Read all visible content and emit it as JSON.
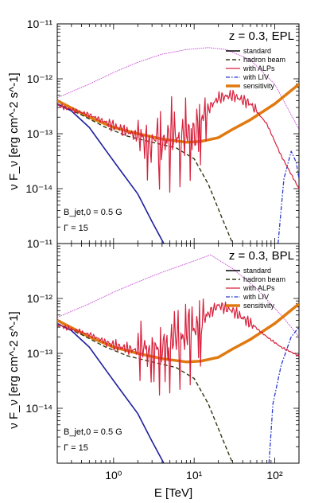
{
  "chart_data": [
    {
      "type": "line",
      "label": "z = 0.3, EPL",
      "xlabel": "E [TeV]",
      "ylabel": "ν F_ν [erg cm^-2 s^-1]",
      "xscale": "log",
      "yscale": "log",
      "xlim": [
        0.2,
        200
      ],
      "ylim": [
        1e-11,
        1e-15
      ],
      "ylim_note": "",
      "yrange": [
        1e-15,
        1e-11
      ],
      "y_tick_labels": [
        "10⁻¹¹",
        "10⁻¹²",
        "10⁻¹³",
        "10⁻¹⁴"
      ],
      "x_tick_labels": [
        "10⁰",
        "10¹",
        "10²"
      ],
      "param_text": "B_jet,0 = 0.5 G",
      "gamma_text": "Γ = 15",
      "legend": [
        "standard",
        "hadron beam",
        "with ALPs",
        "with LIV",
        "sensitivity"
      ],
      "series": [
        {
          "name": "standard",
          "color": "#1f1fa0",
          "x": [
            0.2,
            0.3,
            0.5,
            0.8,
            1.2,
            2,
            3,
            4.2
          ],
          "y": [
            3.5e-13,
            2.6e-13,
            1.3e-13,
            5e-14,
            2.2e-14,
            8e-15,
            2.5e-15,
            1e-15
          ]
        },
        {
          "name": "hadron beam",
          "color": "#2d3a12",
          "x": [
            0.2,
            0.4,
            0.8,
            1.5,
            3,
            6,
            10,
            15,
            22,
            30
          ],
          "y": [
            3.5e-13,
            2.2e-13,
            1.3e-13,
            9e-14,
            7e-14,
            5.5e-14,
            3.5e-14,
            1.2e-14,
            3e-15,
            1e-15
          ]
        },
        {
          "name": "with ALPs",
          "color": "#d8203c",
          "x": [
            0.2,
            0.5,
            1,
            2,
            3,
            5,
            8,
            12,
            20,
            30,
            50,
            80,
            120,
            200
          ],
          "y": [
            3.3e-13,
            2.2e-13,
            1.4e-13,
            9e-14,
            8e-14,
            7.5e-14,
            9e-14,
            2e-13,
            4.5e-13,
            5e-13,
            3.5e-13,
            1.5e-13,
            4e-14,
            1e-14
          ]
        },
        {
          "name": "with LIV",
          "color": "#2a3ad0",
          "x": [
            110,
            130,
            160,
            185,
            200
          ],
          "y": [
            1e-15,
            1.5e-14,
            4.8e-14,
            3e-14,
            1.5e-14
          ]
        },
        {
          "name": "sensitivity",
          "color": "#e07a10",
          "x": [
            0.2,
            0.5,
            1,
            2,
            4,
            8,
            12,
            20,
            30,
            50,
            100,
            200
          ],
          "y": [
            4e-13,
            2e-13,
            1.3e-13,
            1e-13,
            8e-14,
            7e-14,
            7.2e-14,
            8.5e-14,
            1.2e-13,
            1.8e-13,
            3.5e-13,
            8e-13
          ]
        },
        {
          "name": "",
          "color": "#c02bd0",
          "x": [
            0.2,
            0.5,
            1,
            2,
            4,
            8,
            15,
            25,
            50,
            100,
            200
          ],
          "y": [
            4.5e-13,
            8e-13,
            1.3e-12,
            2e-12,
            2.8e-12,
            3.4e-12,
            3.7e-12,
            3.4e-12,
            2.2e-12,
            8e-13,
            1.2e-13
          ]
        }
      ]
    },
    {
      "type": "line",
      "label": "z = 0.3, BPL",
      "xlabel": "E [TeV]",
      "ylabel": "ν F_ν [erg cm^-2 s^-1]",
      "xscale": "log",
      "yscale": "log",
      "xlim": [
        0.2,
        200
      ],
      "yrange": [
        1e-15,
        1e-11
      ],
      "y_tick_labels": [
        "10⁻¹¹",
        "10⁻¹²",
        "10⁻¹³",
        "10⁻¹⁴"
      ],
      "x_tick_labels": [
        "10⁰",
        "10¹",
        "10²"
      ],
      "param_text": "B_jet,0 = 0.5 G",
      "gamma_text": "Γ = 15",
      "legend": [
        "standard",
        "hadron beam",
        "with ALPs",
        "with LIV",
        "sensitivity"
      ],
      "series": [
        {
          "name": "standard",
          "color": "#1f1fa0",
          "x": [
            0.2,
            0.3,
            0.5,
            0.8,
            1.2,
            2,
            3,
            4.2
          ],
          "y": [
            3.5e-13,
            2.6e-13,
            1.3e-13,
            5e-14,
            2.2e-14,
            8e-15,
            2.5e-15,
            1e-15
          ]
        },
        {
          "name": "hadron beam",
          "color": "#2d3a12",
          "x": [
            0.2,
            0.4,
            0.8,
            1.5,
            3,
            6,
            10,
            15,
            22,
            30
          ],
          "y": [
            3.5e-13,
            2.2e-13,
            1.3e-13,
            9e-14,
            7e-14,
            5.5e-14,
            3.5e-14,
            1.2e-14,
            3e-15,
            1e-15
          ]
        },
        {
          "name": "with ALPs",
          "color": "#d8203c",
          "x": [
            0.2,
            0.5,
            1,
            2,
            3,
            5,
            8,
            12,
            20,
            30,
            50,
            80,
            120,
            200
          ],
          "y": [
            3.3e-13,
            2.2e-13,
            1.4e-13,
            1.1e-13,
            1.3e-13,
            1.5e-13,
            2e-13,
            4e-13,
            7.5e-13,
            6e-13,
            3.5e-13,
            2e-13,
            1.3e-13,
            9e-14
          ]
        },
        {
          "name": "with LIV",
          "color": "#2a3ad0",
          "x": [
            85,
            95,
            120,
            160,
            200
          ],
          "y": [
            1e-15,
            1.2e-14,
            6e-14,
            2e-13,
            3e-13
          ]
        },
        {
          "name": "sensitivity",
          "color": "#e07a10",
          "x": [
            0.2,
            0.5,
            1,
            2,
            4,
            8,
            12,
            20,
            30,
            50,
            100,
            200
          ],
          "y": [
            4e-13,
            2e-13,
            1.3e-13,
            1e-13,
            8e-14,
            7e-14,
            7.2e-14,
            8.5e-14,
            1.2e-13,
            1.8e-13,
            3.5e-13,
            8e-13
          ]
        },
        {
          "name": "",
          "color": "#c02bd0",
          "x": [
            0.2,
            0.5,
            1,
            2,
            4,
            8,
            16,
            30,
            60,
            120,
            200
          ],
          "y": [
            4.5e-13,
            8e-13,
            1.3e-12,
            2e-12,
            3e-12,
            4.3e-12,
            6.2e-12,
            3.5e-12,
            1.5e-12,
            5e-13,
            2e-13
          ]
        }
      ]
    }
  ]
}
